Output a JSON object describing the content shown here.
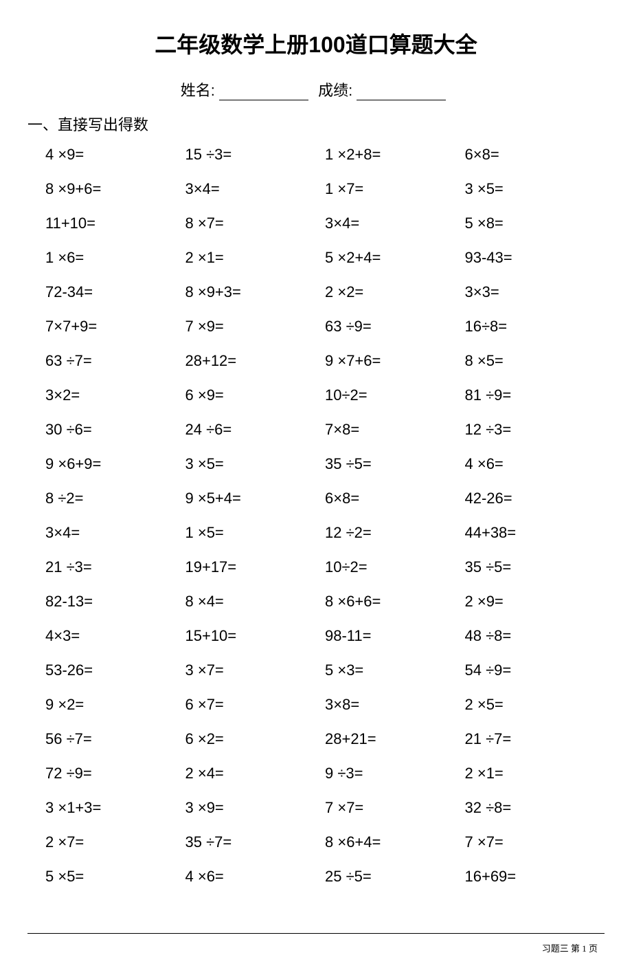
{
  "title": "二年级数学上册100道口算题大全",
  "name_label": "姓名:",
  "score_label": "成绩:",
  "section_label": "一、直接写出得数",
  "page_footer": "习题三 第 1 页",
  "text_color": "#000000",
  "background_color": "#ffffff",
  "title_fontsize": 32,
  "body_fontsize": 22,
  "footer_fontsize": 13,
  "grid": {
    "columns": 4,
    "rows": 22
  },
  "problems": [
    "4 ×9=",
    "15 ÷3=",
    "1 ×2+8=",
    "6×8=",
    "8 ×9+6=",
    "3×4=",
    "1 ×7=",
    "3 ×5=",
    "11+10=",
    "8 ×7=",
    "3×4=",
    "5 ×8=",
    "1 ×6=",
    "2 ×1=",
    "5 ×2+4=",
    "93-43=",
    "72-34=",
    "8 ×9+3=",
    "2 ×2=",
    "3×3=",
    "7×7+9=",
    "7 ×9=",
    "63 ÷9=",
    "16÷8=",
    "63 ÷7=",
    "28+12=",
    "9 ×7+6=",
    "8 ×5=",
    "3×2=",
    "6 ×9=",
    "10÷2=",
    "81 ÷9=",
    "30 ÷6=",
    "24 ÷6=",
    "7×8=",
    "12 ÷3=",
    "9 ×6+9=",
    "3 ×5=",
    "35 ÷5=",
    "4 ×6=",
    "8 ÷2=",
    "9 ×5+4=",
    "6×8=",
    "42-26=",
    "3×4=",
    "1 ×5=",
    "12 ÷2=",
    "44+38=",
    "21 ÷3=",
    "19+17=",
    "10÷2=",
    "35 ÷5=",
    "82-13=",
    "8 ×4=",
    "8 ×6+6=",
    "2 ×9=",
    "4×3=",
    "15+10=",
    "98-11=",
    "48 ÷8=",
    "53-26=",
    "3 ×7=",
    "5 ×3=",
    "54 ÷9=",
    "9 ×2=",
    "6 ×7=",
    "3×8=",
    "2 ×5=",
    "56 ÷7=",
    "6 ×2=",
    "28+21=",
    "21 ÷7=",
    "72 ÷9=",
    "2 ×4=",
    "9 ÷3=",
    "2 ×1=",
    "3 ×1+3=",
    "3 ×9=",
    "7 ×7=",
    "32 ÷8=",
    "2 ×7=",
    "35 ÷7=",
    "8 ×6+4=",
    "7 ×7=",
    "5 ×5=",
    "4 ×6=",
    "25 ÷5=",
    "16+69="
  ]
}
